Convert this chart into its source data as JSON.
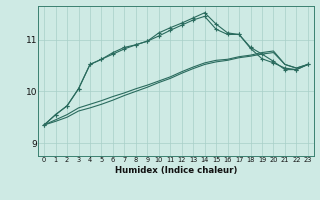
{
  "xlabel": "Humidex (Indice chaleur)",
  "ylabel": "",
  "bg_color": "#ceeae4",
  "line_color": "#2a6b5e",
  "grid_color": "#a8cfc8",
  "xlim": [
    -0.5,
    23.5
  ],
  "ylim": [
    8.75,
    11.65
  ],
  "xticks": [
    0,
    1,
    2,
    3,
    4,
    5,
    6,
    7,
    8,
    9,
    10,
    11,
    12,
    13,
    14,
    15,
    16,
    17,
    18,
    19,
    20,
    21,
    22,
    23
  ],
  "yticks": [
    9,
    10,
    11
  ],
  "line1_x": [
    0,
    1,
    2,
    3,
    4,
    5,
    6,
    7,
    8,
    9,
    10,
    11,
    12,
    13,
    14,
    15,
    16,
    17,
    18,
    19,
    20,
    21,
    22,
    23
  ],
  "line1_y": [
    9.35,
    9.55,
    9.72,
    10.05,
    10.52,
    10.62,
    10.72,
    10.82,
    10.9,
    10.97,
    11.07,
    11.18,
    11.28,
    11.38,
    11.45,
    11.2,
    11.1,
    11.1,
    10.83,
    10.63,
    10.55,
    10.45,
    10.42,
    10.52
  ],
  "line2_x": [
    0,
    1,
    2,
    3,
    4,
    5,
    6,
    7,
    8,
    9,
    10,
    11,
    12,
    13,
    14,
    15,
    16,
    17,
    18,
    19,
    20,
    21,
    22,
    23
  ],
  "line2_y": [
    9.35,
    9.55,
    9.72,
    10.05,
    10.52,
    10.62,
    10.75,
    10.85,
    10.9,
    10.97,
    11.13,
    11.23,
    11.32,
    11.42,
    11.52,
    11.3,
    11.13,
    11.1,
    10.85,
    10.72,
    10.58,
    10.42,
    10.42,
    10.52
  ],
  "line3_x": [
    0,
    1,
    2,
    3,
    4,
    5,
    6,
    7,
    8,
    9,
    10,
    11,
    12,
    13,
    14,
    15,
    16,
    17,
    18,
    19,
    20,
    21,
    22,
    23
  ],
  "line3_y": [
    9.35,
    9.45,
    9.55,
    9.68,
    9.75,
    9.82,
    9.9,
    9.97,
    10.05,
    10.12,
    10.2,
    10.28,
    10.38,
    10.47,
    10.55,
    10.6,
    10.62,
    10.67,
    10.7,
    10.75,
    10.78,
    10.52,
    10.45,
    10.52
  ],
  "line4_x": [
    0,
    1,
    2,
    3,
    4,
    5,
    6,
    7,
    8,
    9,
    10,
    11,
    12,
    13,
    14,
    15,
    16,
    17,
    18,
    19,
    20,
    21,
    22,
    23
  ],
  "line4_y": [
    9.35,
    9.42,
    9.5,
    9.62,
    9.68,
    9.75,
    9.83,
    9.92,
    10.0,
    10.08,
    10.17,
    10.25,
    10.35,
    10.44,
    10.52,
    10.57,
    10.6,
    10.65,
    10.68,
    10.72,
    10.75,
    10.52,
    10.45,
    10.52
  ]
}
